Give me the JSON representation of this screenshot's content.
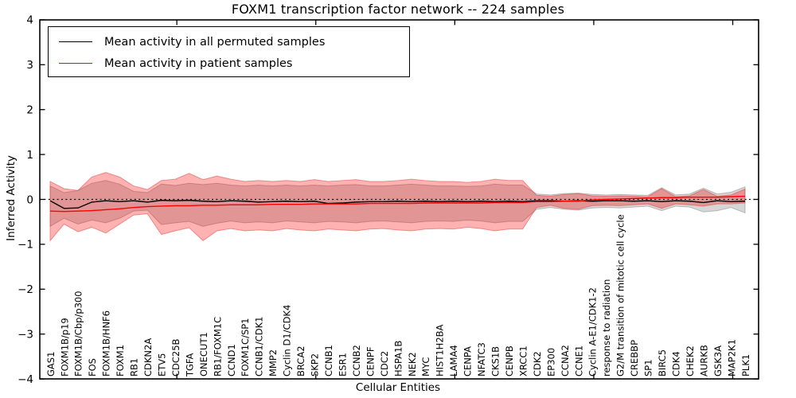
{
  "title": "FOXM1 transcription factor network -- 224 samples",
  "legend": {
    "items": [
      {
        "label": "Mean activity in all permuted samples",
        "color": "#000000"
      },
      {
        "label": "Mean activity in patient samples",
        "color": "#ff0000"
      }
    ]
  },
  "chart_data": {
    "type": "line",
    "title": "FOXM1 transcription factor network -- 224 samples",
    "xlabel": "Cellular Entities",
    "ylabel": "Inferred Activity",
    "ylim": [
      -4,
      4
    ],
    "grid": false,
    "legend_position": "upper left",
    "zero_line": {
      "y": 0,
      "style": "dotted",
      "color": "#000000"
    },
    "yticks": [
      {
        "value": 4,
        "label": "4"
      },
      {
        "value": 3,
        "label": "3"
      },
      {
        "value": 2,
        "label": "2"
      },
      {
        "value": 1,
        "label": "1"
      },
      {
        "value": 0,
        "label": "0"
      },
      {
        "value": -1,
        "label": "−1"
      },
      {
        "value": -2,
        "label": "−2"
      },
      {
        "value": -3,
        "label": "−3"
      },
      {
        "value": -4,
        "label": "−4"
      }
    ],
    "x_major_tick_indices": [
      9,
      19,
      29,
      39,
      49
    ],
    "categories": [
      "GAS1",
      "FOXM1B/p19",
      "FOXM1B/Cbp/p300",
      "FOS",
      "FOXM1B/HNF6",
      "FOXM1",
      "RB1",
      "CDKN2A",
      "ETV5",
      "CDC25B",
      "TGFA",
      "ONECUT1",
      "RB1/FOXM1C",
      "CCND1",
      "FOXM1C/SP1",
      "CCNB1/CDK1",
      "MMP2",
      "Cyclin D1/CDK4",
      "BRCA2",
      "SKP2",
      "CCNB1",
      "ESR1",
      "CCNB2",
      "CENPF",
      "CDC2",
      "HSPA1B",
      "NEK2",
      "MYC",
      "HIST1H2BA",
      "LAMA4",
      "CENPA",
      "NFATC3",
      "CKS1B",
      "CENPB",
      "XRCC1",
      "CDK2",
      "EP300",
      "CCNA2",
      "CCNE1",
      "Cyclin A-E1/CDK1-2",
      "response to radiation",
      "G2/M transition of mitotic cell cycle",
      "CREBBP",
      "SP1",
      "BIRC5",
      "CDK4",
      "CHEK2",
      "AURKB",
      "GSK3A",
      "MAP2K1",
      "PLK1"
    ],
    "series": [
      {
        "id": "mean-permuted-line",
        "name": "Mean activity in all permuted samples",
        "color": "#000000",
        "values": [
          -0.03,
          -0.2,
          -0.19,
          -0.06,
          -0.03,
          -0.05,
          -0.03,
          -0.06,
          -0.02,
          -0.03,
          -0.02,
          -0.04,
          -0.05,
          -0.03,
          -0.04,
          -0.06,
          -0.05,
          -0.04,
          -0.05,
          -0.04,
          -0.09,
          -0.08,
          -0.06,
          -0.05,
          -0.05,
          -0.04,
          -0.05,
          -0.04,
          -0.05,
          -0.04,
          -0.05,
          -0.04,
          -0.05,
          -0.04,
          -0.05,
          -0.03,
          -0.03,
          -0.04,
          -0.03,
          -0.04,
          -0.03,
          -0.03,
          -0.04,
          -0.03,
          -0.05,
          -0.03,
          -0.04,
          -0.07,
          -0.03,
          -0.05,
          -0.04
        ]
      },
      {
        "id": "mean-patient-line",
        "name": "Mean activity in patient samples",
        "color": "#ff0000",
        "values": [
          -0.26,
          -0.27,
          -0.26,
          -0.25,
          -0.23,
          -0.21,
          -0.18,
          -0.16,
          -0.15,
          -0.14,
          -0.14,
          -0.13,
          -0.13,
          -0.12,
          -0.12,
          -0.12,
          -0.11,
          -0.11,
          -0.11,
          -0.1,
          -0.1,
          -0.1,
          -0.1,
          -0.09,
          -0.09,
          -0.09,
          -0.09,
          -0.08,
          -0.08,
          -0.08,
          -0.08,
          -0.08,
          -0.07,
          -0.07,
          -0.07,
          -0.05,
          -0.05,
          -0.04,
          -0.04,
          -0.01,
          0.0,
          0.01,
          0.02,
          0.03,
          0.04,
          0.04,
          0.05,
          0.05,
          0.05,
          0.06,
          0.07
        ]
      }
    ],
    "bands": [
      {
        "name": "permuted-std-band",
        "fill": "rgba(70,70,70,0.22)",
        "edge": "rgba(120,120,120,0.45)",
        "upper": [
          0.3,
          0.15,
          0.2,
          0.36,
          0.42,
          0.34,
          0.18,
          0.15,
          0.34,
          0.31,
          0.36,
          0.33,
          0.36,
          0.32,
          0.3,
          0.32,
          0.3,
          0.32,
          0.3,
          0.32,
          0.3,
          0.32,
          0.33,
          0.3,
          0.3,
          0.32,
          0.34,
          0.32,
          0.3,
          0.3,
          0.29,
          0.3,
          0.34,
          0.32,
          0.32,
          0.12,
          0.1,
          0.13,
          0.14,
          0.11,
          0.1,
          0.11,
          0.1,
          0.09,
          0.26,
          0.1,
          0.12,
          0.25,
          0.12,
          0.16,
          0.28
        ],
        "lower": [
          -0.6,
          -0.42,
          -0.55,
          -0.46,
          -0.52,
          -0.42,
          -0.26,
          -0.24,
          -0.56,
          -0.52,
          -0.49,
          -0.6,
          -0.53,
          -0.48,
          -0.52,
          -0.5,
          -0.52,
          -0.48,
          -0.5,
          -0.52,
          -0.49,
          -0.5,
          -0.52,
          -0.49,
          -0.48,
          -0.5,
          -0.52,
          -0.49,
          -0.48,
          -0.49,
          -0.46,
          -0.48,
          -0.52,
          -0.49,
          -0.49,
          -0.22,
          -0.18,
          -0.22,
          -0.24,
          -0.19,
          -0.18,
          -0.19,
          -0.17,
          -0.15,
          -0.25,
          -0.15,
          -0.17,
          -0.28,
          -0.25,
          -0.18,
          -0.3
        ]
      },
      {
        "name": "patient-std-band",
        "fill": "rgba(255,0,0,0.30)",
        "edge": "rgba(225,60,55,0.50)",
        "upper": [
          0.4,
          0.24,
          0.2,
          0.5,
          0.6,
          0.5,
          0.3,
          0.22,
          0.42,
          0.45,
          0.58,
          0.44,
          0.52,
          0.45,
          0.4,
          0.42,
          0.4,
          0.42,
          0.4,
          0.44,
          0.4,
          0.42,
          0.44,
          0.4,
          0.4,
          0.42,
          0.45,
          0.42,
          0.4,
          0.4,
          0.38,
          0.4,
          0.45,
          0.42,
          0.42,
          0.09,
          0.07,
          0.11,
          0.13,
          0.08,
          0.07,
          0.08,
          0.07,
          0.06,
          0.24,
          0.06,
          0.08,
          0.22,
          0.07,
          0.1,
          0.23
        ],
        "lower": [
          -0.92,
          -0.55,
          -0.72,
          -0.62,
          -0.75,
          -0.55,
          -0.35,
          -0.32,
          -0.78,
          -0.7,
          -0.63,
          -0.92,
          -0.7,
          -0.65,
          -0.7,
          -0.68,
          -0.7,
          -0.65,
          -0.68,
          -0.7,
          -0.66,
          -0.68,
          -0.7,
          -0.66,
          -0.65,
          -0.68,
          -0.7,
          -0.66,
          -0.65,
          -0.66,
          -0.62,
          -0.65,
          -0.7,
          -0.66,
          -0.66,
          -0.18,
          -0.13,
          -0.2,
          -0.22,
          -0.14,
          -0.13,
          -0.14,
          -0.12,
          -0.1,
          -0.2,
          -0.1,
          -0.12,
          -0.15,
          -0.1,
          -0.1,
          -0.08
        ]
      }
    ]
  }
}
